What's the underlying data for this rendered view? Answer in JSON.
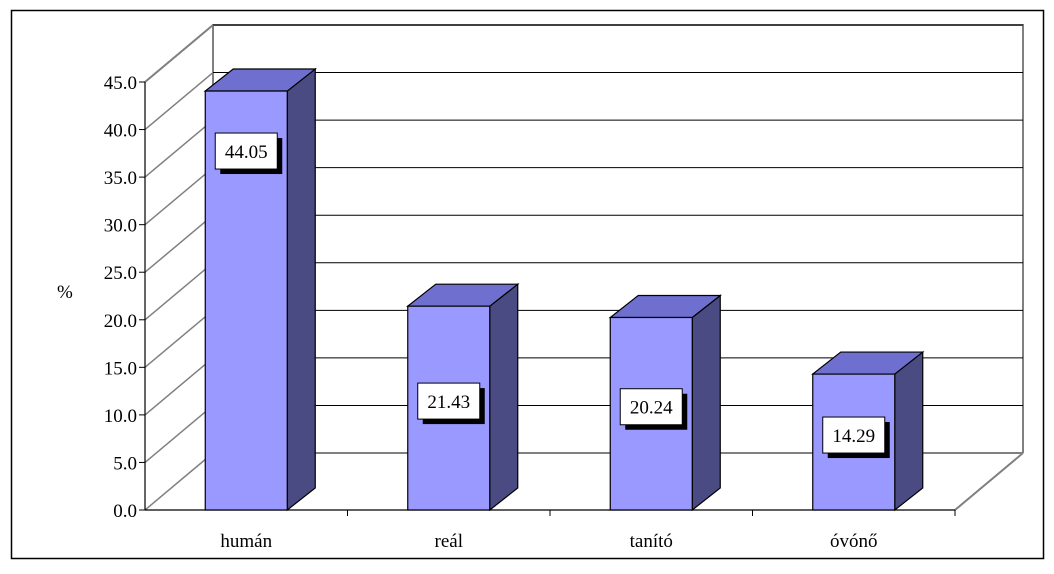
{
  "chart_data": {
    "type": "bar",
    "categories": [
      "humán",
      "reál",
      "tanító",
      "óvónő"
    ],
    "values": [
      44.05,
      21.43,
      20.24,
      14.29
    ],
    "data_labels": [
      "44.05",
      "21.43",
      "20.24",
      "14.29"
    ],
    "ylabel": "%",
    "xlabel": "",
    "ylim": [
      0,
      45
    ],
    "y_ticks": [
      "0.0",
      "5.0",
      "10.0",
      "15.0",
      "20.0",
      "25.0",
      "30.0",
      "35.0",
      "40.0",
      "45.0"
    ],
    "grid": true,
    "three_d": true,
    "legend": "none",
    "colors": {
      "bar_front": "#9999ff",
      "bar_side": "#4b4b83",
      "bar_top": "#6f6fcf",
      "gridline": "#000000",
      "wall": "#808080"
    }
  }
}
